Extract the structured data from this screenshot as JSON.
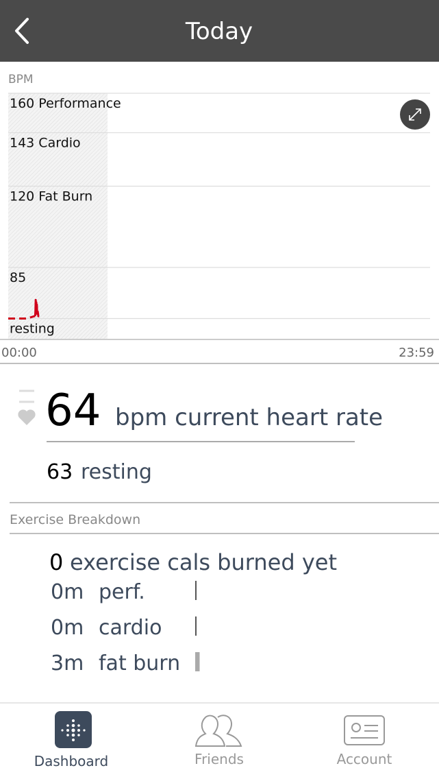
{
  "header": {
    "title": "Today"
  },
  "chart_data": {
    "type": "line",
    "y_label": "BPM",
    "xlim": [
      0,
      1439
    ],
    "xticks": [
      {
        "value": 0,
        "label": "00:00"
      },
      {
        "value": 1439,
        "label": "23:59"
      }
    ],
    "ylim": [
      54,
      160
    ],
    "yticks": [
      {
        "value": 160,
        "label": "160 Performance"
      },
      {
        "value": 143,
        "label": "143 Cardio"
      },
      {
        "value": 120,
        "label": "120 Fat Burn"
      },
      85,
      {
        "value": 63,
        "label": "resting"
      }
    ],
    "grid": true,
    "series": [
      {
        "color": "#d0021b",
        "dashed": true,
        "x": [
          0,
          62,
          88,
          91
        ],
        "values": [
          63,
          63,
          64,
          64
        ]
      },
      {
        "color": "#d0021b",
        "dashed": false,
        "x": [
          91,
          92,
          93,
          94,
          95,
          96,
          97,
          98,
          100,
          102,
          105
        ],
        "values": [
          64,
          66,
          71,
          68,
          70,
          66,
          69,
          65,
          66,
          64,
          64
        ]
      }
    ]
  },
  "heart_rate": {
    "current": 64,
    "current_label": "bpm current heart rate",
    "resting": 63,
    "resting_label": "resting"
  },
  "exercise": {
    "title": "Exercise Breakdown",
    "cals": 0,
    "cals_label": "exercise cals burned yet",
    "rows": [
      {
        "value": 0,
        "value_label": "0m",
        "label": "perf."
      },
      {
        "value": 0,
        "value_label": "0m",
        "label": "cardio"
      },
      {
        "value": 3,
        "value_label": "3m",
        "label": "fat burn"
      }
    ]
  },
  "tabs": [
    {
      "label": "Dashboard"
    },
    {
      "label": "Friends"
    },
    {
      "label": "Account"
    }
  ]
}
